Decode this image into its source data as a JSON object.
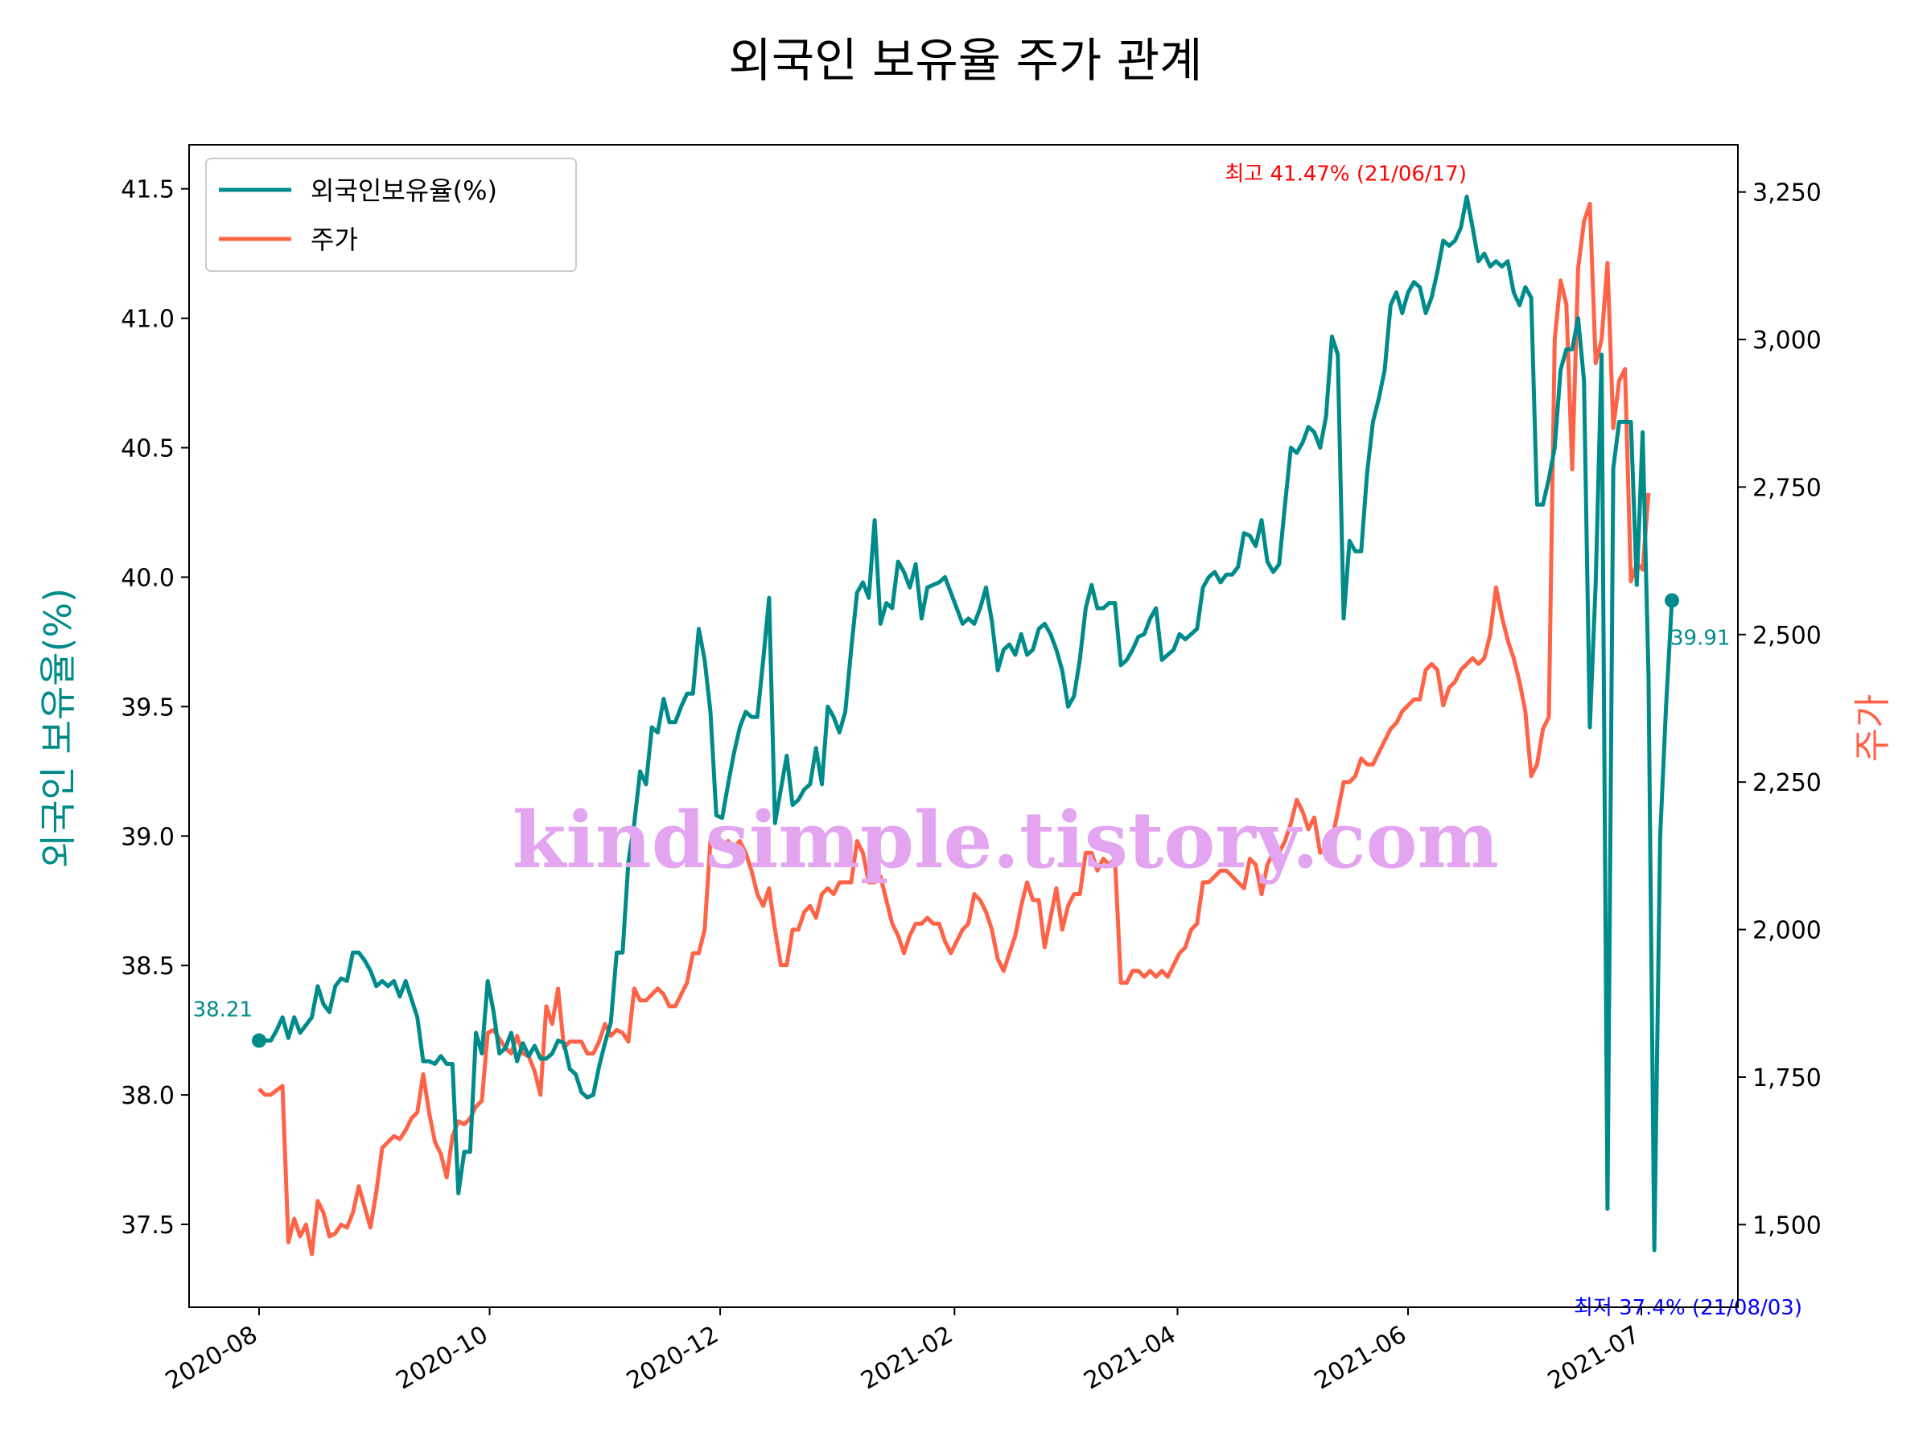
{
  "chart_data": {
    "type": "line",
    "title": "외국인 보유율 주가 관계",
    "ylabel_left": "외국인 보유율(%)",
    "ylabel_right": "주가",
    "ylim_left": [
      37.18,
      41.67
    ],
    "ylim_right": [
      1360,
      3330
    ],
    "y_ticks_left": [
      "37.5",
      "38.0",
      "38.5",
      "39.0",
      "39.5",
      "40.0",
      "40.5",
      "41.0",
      "41.5"
    ],
    "y_ticks_right": [
      "1,500",
      "1,750",
      "2,000",
      "2,250",
      "2,500",
      "2,750",
      "3,000",
      "3,250"
    ],
    "x_ticks": [
      "2020-08",
      "2020-10",
      "2020-12",
      "2021-02",
      "2021-04",
      "2021-06",
      "2021-07"
    ],
    "grid": false,
    "legend": {
      "placement": "top-left",
      "entries": [
        {
          "label": "외국인보유율(%)",
          "color": "#008b8b"
        },
        {
          "label": "주가",
          "color": "#ff6347"
        }
      ]
    },
    "series": [
      {
        "name": "외국인보유율(%)",
        "axis": "left",
        "color": "#008b8b",
        "values": [
          38.21,
          38.21,
          38.21,
          38.25,
          38.3,
          38.22,
          38.3,
          38.24,
          38.27,
          38.3,
          38.42,
          38.35,
          38.32,
          38.42,
          38.45,
          38.44,
          38.55,
          38.55,
          38.52,
          38.48,
          38.42,
          38.44,
          38.42,
          38.44,
          38.38,
          38.44,
          38.37,
          38.3,
          38.13,
          38.13,
          38.12,
          38.15,
          38.12,
          38.12,
          37.62,
          37.78,
          37.78,
          38.24,
          38.16,
          38.44,
          38.32,
          38.16,
          38.18,
          38.24,
          38.13,
          38.2,
          38.15,
          38.19,
          38.14,
          38.14,
          38.16,
          38.21,
          38.2,
          38.1,
          38.08,
          38.01,
          37.99,
          38.0,
          38.11,
          38.2,
          38.28,
          38.55,
          38.55,
          38.9,
          39.05,
          39.25,
          39.2,
          39.42,
          39.4,
          39.53,
          39.44,
          39.44,
          39.5,
          39.55,
          39.55,
          39.8,
          39.68,
          39.48,
          39.08,
          39.07,
          39.2,
          39.32,
          39.42,
          39.48,
          39.46,
          39.46,
          39.68,
          39.92,
          39.05,
          39.18,
          39.31,
          39.12,
          39.14,
          39.18,
          39.2,
          39.34,
          39.2,
          39.5,
          39.46,
          39.4,
          39.48,
          39.72,
          39.94,
          39.98,
          39.92,
          40.22,
          39.82,
          39.9,
          39.88,
          40.06,
          40.02,
          39.96,
          40.05,
          39.84,
          39.96,
          39.97,
          39.98,
          40.0,
          39.94,
          39.88,
          39.82,
          39.84,
          39.82,
          39.88,
          39.96,
          39.83,
          39.64,
          39.72,
          39.74,
          39.7,
          39.78,
          39.7,
          39.72,
          39.8,
          39.82,
          39.78,
          39.72,
          39.64,
          39.5,
          39.54,
          39.68,
          39.88,
          39.97,
          39.88,
          39.88,
          39.9,
          39.9,
          39.66,
          39.68,
          39.72,
          39.77,
          39.78,
          39.84,
          39.88,
          39.68,
          39.7,
          39.72,
          39.78,
          39.76,
          39.78,
          39.8,
          39.96,
          40.0,
          40.02,
          39.98,
          40.01,
          40.01,
          40.04,
          40.17,
          40.16,
          40.12,
          40.22,
          40.06,
          40.02,
          40.05,
          40.28,
          40.5,
          40.48,
          40.52,
          40.58,
          40.56,
          40.5,
          40.62,
          40.93,
          40.86,
          39.84,
          40.14,
          40.1,
          40.1,
          40.4,
          40.6,
          40.69,
          40.8,
          41.05,
          41.1,
          41.02,
          41.1,
          41.14,
          41.12,
          41.02,
          41.08,
          41.18,
          41.3,
          41.28,
          41.3,
          41.35,
          41.47,
          41.35,
          41.22,
          41.25,
          41.2,
          41.22,
          41.2,
          41.22,
          41.1,
          41.05,
          41.12,
          41.08,
          40.28,
          40.28,
          40.38,
          40.5,
          40.8,
          40.88,
          40.88,
          41.0,
          40.76,
          39.42,
          39.98,
          40.86,
          37.56,
          40.42,
          40.6,
          40.6,
          40.6,
          39.97,
          40.56,
          39.62,
          37.4,
          39.0,
          39.5,
          39.91
        ]
      },
      {
        "name": "주가",
        "axis": "right",
        "color": "#ff6347",
        "values": [
          1730,
          1720,
          1720,
          1728,
          1735,
          1470,
          1510,
          1480,
          1500,
          1450,
          1540,
          1520,
          1480,
          1485,
          1500,
          1495,
          1520,
          1565,
          1530,
          1495,
          1555,
          1630,
          1640,
          1650,
          1645,
          1660,
          1680,
          1690,
          1755,
          1690,
          1640,
          1620,
          1580,
          1650,
          1675,
          1670,
          1680,
          1700,
          1710,
          1825,
          1830,
          1815,
          1800,
          1790,
          1820,
          1790,
          1785,
          1760,
          1720,
          1870,
          1840,
          1900,
          1800,
          1810,
          1810,
          1810,
          1790,
          1790,
          1810,
          1840,
          1820,
          1830,
          1825,
          1810,
          1900,
          1880,
          1880,
          1890,
          1900,
          1890,
          1870,
          1870,
          1890,
          1910,
          1960,
          1960,
          2000,
          2150,
          2140,
          2140,
          2150,
          2140,
          2150,
          2130,
          2100,
          2060,
          2040,
          2070,
          2000,
          1940,
          1940,
          2000,
          2000,
          2030,
          2040,
          2020,
          2060,
          2070,
          2060,
          2080,
          2080,
          2080,
          2150,
          2130,
          2080,
          2080,
          2090,
          2050,
          2010,
          1990,
          1960,
          1990,
          2010,
          2010,
          2020,
          2010,
          2010,
          1980,
          1960,
          1980,
          2000,
          2010,
          2060,
          2050,
          2030,
          2000,
          1950,
          1930,
          1960,
          1990,
          2040,
          2080,
          2050,
          2050,
          1970,
          2020,
          2070,
          2000,
          2040,
          2060,
          2060,
          2130,
          2130,
          2100,
          2120,
          2110,
          2120,
          1910,
          1910,
          1930,
          1930,
          1920,
          1930,
          1920,
          1930,
          1920,
          1940,
          1960,
          1970,
          2000,
          2010,
          2080,
          2080,
          2090,
          2100,
          2100,
          2090,
          2080,
          2070,
          2120,
          2110,
          2060,
          2110,
          2130,
          2130,
          2150,
          2180,
          2220,
          2200,
          2170,
          2190,
          2130,
          2140,
          2150,
          2200,
          2250,
          2250,
          2260,
          2290,
          2280,
          2280,
          2300,
          2320,
          2340,
          2350,
          2370,
          2380,
          2390,
          2390,
          2440,
          2450,
          2440,
          2380,
          2410,
          2420,
          2440,
          2450,
          2460,
          2450,
          2460,
          2500,
          2580,
          2530,
          2490,
          2460,
          2420,
          2370,
          2260,
          2280,
          2340,
          2360,
          3000,
          3100,
          3060,
          2780,
          3120,
          3200,
          3230,
          2960,
          3000,
          3130,
          2850,
          2930,
          2950,
          2590,
          2620,
          2610,
          2740
        ]
      }
    ],
    "annotations": {
      "start": "38.21",
      "end": "39.91",
      "max": "최고 41.47% (21/06/17)",
      "min": "최저 37.4% (21/08/03)"
    },
    "watermark": "kindsimple.tistory.com"
  }
}
